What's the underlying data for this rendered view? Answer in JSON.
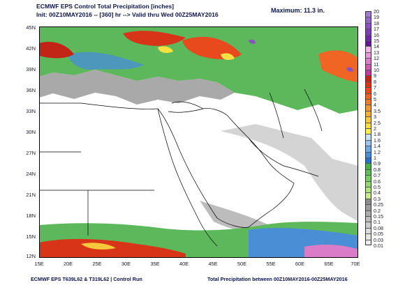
{
  "header": {
    "line1": "ECMWF EPS Control Total Precipitation [inches]",
    "line2": "Init: 00Z10MAY2016 -- [360] hr --> Valid thru Wed 00Z25MAY2016",
    "maximum": "Maximum:   11.3 in."
  },
  "axes": {
    "lat_ticks": [
      "45N",
      "42N",
      "39N",
      "36N",
      "33N",
      "30N",
      "27N",
      "24N",
      "21N",
      "18N",
      "15N",
      "12N"
    ],
    "lon_ticks": [
      "15E",
      "20E",
      "25E",
      "30E",
      "35E",
      "40E",
      "45E",
      "50E",
      "55E",
      "60E",
      "65E",
      "70E"
    ]
  },
  "colorbar": {
    "labels": [
      "20",
      "19",
      "18",
      "17",
      "16",
      "15",
      "14",
      "13",
      "12",
      "11",
      "10",
      "9",
      "8",
      "7",
      "6",
      "5",
      "4",
      "3.5",
      "3",
      "2.5",
      "2",
      "1.8",
      "1.6",
      "1.4",
      "1.2",
      "1",
      "0.9",
      "0.8",
      "0.7",
      "0.6",
      "0.5",
      "0.4",
      "0.3",
      "0.25",
      "0.2",
      "0.15",
      "0.1",
      "0.08",
      "0.05",
      "0.03",
      "0.01"
    ],
    "colors": [
      "#a07cd0",
      "#9466c8",
      "#8a52c0",
      "#7c3cb4",
      "#6e28a6",
      "#601a94",
      "#f2b8e8",
      "#e69ad8",
      "#da7cc8",
      "#cc5cb4",
      "#ba3c9c",
      "#c22416",
      "#d83418",
      "#e84a1e",
      "#f06424",
      "#f27e2a",
      "#f49830",
      "#f6b034",
      "#f8c83a",
      "#fae040",
      "#fff04e",
      "#c8e0f4",
      "#9cc6ec",
      "#70aae2",
      "#4a8ed6",
      "#2a72c8",
      "#48b04a",
      "#60be58",
      "#78cc64",
      "#94d870",
      "#b0e47e",
      "#cae890",
      "#8c8c8c",
      "#9c9c9c",
      "#acacac",
      "#bcbcbc",
      "#cccccc",
      "#dcdcdc",
      "#e4e4e4",
      "#ececec"
    ]
  },
  "footer": {
    "left": "ECMWF EPS T639L62 & T319L62 | Control Run",
    "right": "Total Precipitation between 00Z10MAY2016-00Z25MAY2016"
  }
}
